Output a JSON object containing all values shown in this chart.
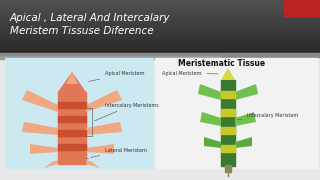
{
  "title_line1": "Apical , Lateral And Intercalary",
  "title_line2": "Meristem Tissuse Diference",
  "title_color": "#ffffff",
  "body_bg_color": "#e8e8e8",
  "left_panel_bg": "#cce8f0",
  "right_bg": "#f5f5f5",
  "right_title": "Meristematic Tissue",
  "left_labels": [
    "Apical Meristem",
    "Intercalary Meristems",
    "Lateral Meristem"
  ],
  "right_labels": [
    "Apical Meristem",
    "Intercalary Meristem"
  ],
  "salmon_mid": "#e07858",
  "salmon_light": "#f0a882",
  "salmon_dark": "#c85030",
  "salmon_stripe": "#d86848",
  "green_dark": "#3a7a30",
  "green_mid": "#5aaa40",
  "green_light": "#70c050",
  "yellow_tip": "#d8d840",
  "yellow_band": "#c8c828",
  "stem_tan": "#d8a870",
  "red_accent": "#bb2222",
  "header_dark": "#3a3a3a",
  "header_mid": "#555555",
  "header_light": "#6a6a6a",
  "label_color": "#333333",
  "line_color": "#666666"
}
